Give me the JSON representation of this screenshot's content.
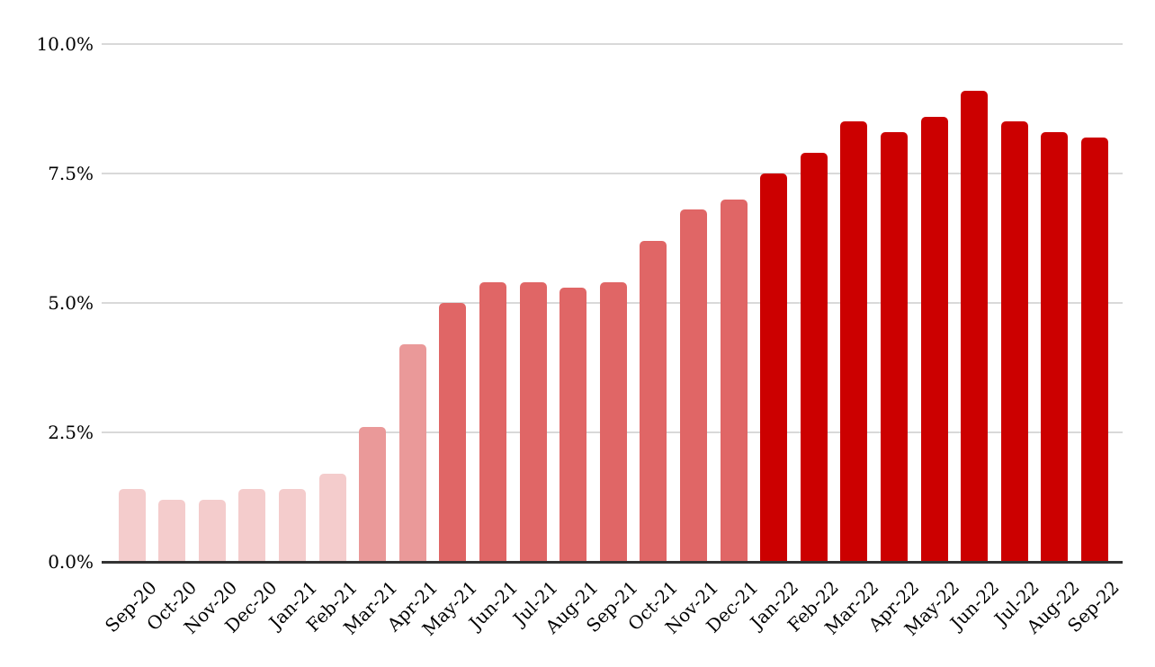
{
  "chart_data": {
    "type": "bar",
    "title": "",
    "xlabel": "",
    "ylabel": "",
    "legend": "none",
    "grid": true,
    "ylim": [
      0,
      10
    ],
    "ytick_values": [
      0,
      2.5,
      5,
      7.5,
      10
    ],
    "ytick_labels": [
      "0.0%",
      "2.5%",
      "5.0%",
      "7.5%",
      "10.0%"
    ],
    "categories": [
      "Sep-20",
      "Oct-20",
      "Nov-20",
      "Dec-20",
      "Jan-21",
      "Feb-21",
      "Mar-21",
      "Apr-21",
      "May-21",
      "Jun-21",
      "Jul-21",
      "Aug-21",
      "Sep-21",
      "Oct-21",
      "Nov-21",
      "Dec-21",
      "Jan-22",
      "Feb-22",
      "Mar-22",
      "Apr-22",
      "May-22",
      "Jun-22",
      "Jul-22",
      "Aug-22",
      "Sep-22"
    ],
    "values": [
      1.4,
      1.2,
      1.2,
      1.4,
      1.4,
      1.7,
      2.6,
      4.2,
      5.0,
      5.4,
      5.4,
      5.3,
      5.4,
      6.2,
      6.8,
      7.0,
      7.5,
      7.9,
      8.5,
      8.3,
      8.6,
      9.1,
      8.5,
      8.3,
      8.2
    ],
    "bar_colors": [
      "#f4cccc",
      "#f4cccc",
      "#f4cccc",
      "#f4cccc",
      "#f4cccc",
      "#f4cccc",
      "#ea9999",
      "#ea9999",
      "#e06666",
      "#e06666",
      "#e06666",
      "#e06666",
      "#e06666",
      "#e06666",
      "#e06666",
      "#e06666",
      "#cc0000",
      "#cc0000",
      "#cc0000",
      "#cc0000",
      "#cc0000",
      "#cc0000",
      "#cc0000",
      "#cc0000",
      "#cc0000"
    ],
    "colors": {
      "gridline": "#d9d9d9",
      "axis_line": "#333333",
      "label_text": "#000000",
      "background": "#ffffff"
    }
  }
}
